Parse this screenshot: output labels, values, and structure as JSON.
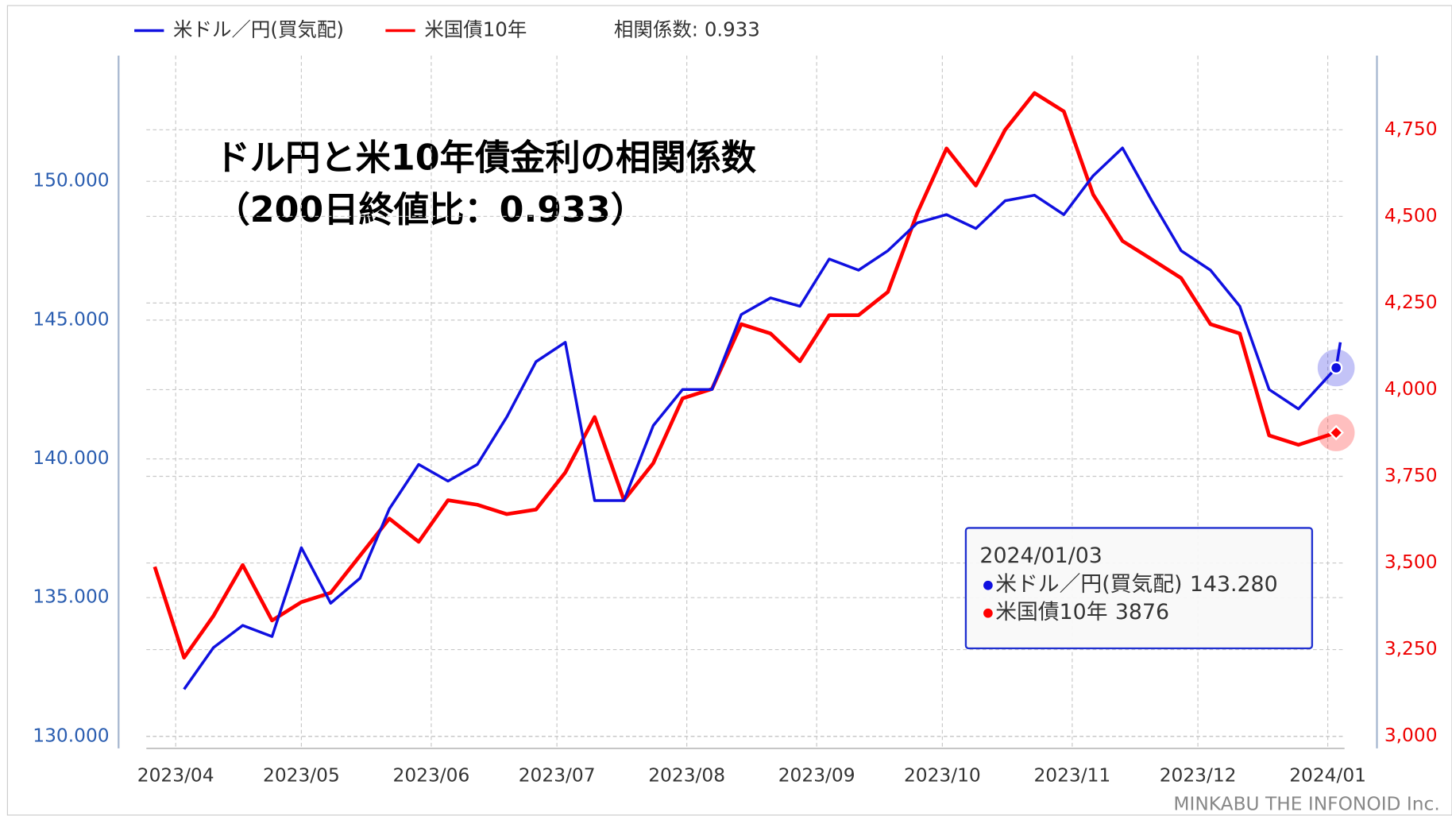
{
  "chart_data": {
    "type": "line",
    "title": "ドル円と米10年債金利の相関係数",
    "subtitle": "（200日終値比：0.933）",
    "legend_note": "相関係数: 0.933",
    "footer": "MINKABU THE INFONOID Inc.",
    "x": [
      "2023/03/27",
      "2023/04/03",
      "2023/04/10",
      "2023/04/17",
      "2023/04/24",
      "2023/05/01",
      "2023/05/08",
      "2023/05/15",
      "2023/05/22",
      "2023/05/29",
      "2023/06/05",
      "2023/06/12",
      "2023/06/19",
      "2023/06/26",
      "2023/07/03",
      "2023/07/10",
      "2023/07/17",
      "2023/07/24",
      "2023/07/31",
      "2023/08/07",
      "2023/08/14",
      "2023/08/21",
      "2023/08/28",
      "2023/09/04",
      "2023/09/11",
      "2023/09/18",
      "2023/09/25",
      "2023/10/02",
      "2023/10/09",
      "2023/10/16",
      "2023/10/23",
      "2023/10/30",
      "2023/11/06",
      "2023/11/13",
      "2023/11/20",
      "2023/11/27",
      "2023/12/04",
      "2023/12/11",
      "2023/12/18",
      "2023/12/25",
      "2024/01/03",
      "2024/01/04"
    ],
    "xlim": [
      "2023/03/25",
      "2024/01/05"
    ],
    "xticks": [
      {
        "value": "2023/04/01",
        "label": "2023/04"
      },
      {
        "value": "2023/05/01",
        "label": "2023/05"
      },
      {
        "value": "2023/06/01",
        "label": "2023/06"
      },
      {
        "value": "2023/07/01",
        "label": "2023/07"
      },
      {
        "value": "2023/08/01",
        "label": "2023/08"
      },
      {
        "value": "2023/09/01",
        "label": "2023/09"
      },
      {
        "value": "2023/10/01",
        "label": "2023/10"
      },
      {
        "value": "2023/11/01",
        "label": "2023/11"
      },
      {
        "value": "2023/12/01",
        "label": "2023/12"
      },
      {
        "value": "2024/01/01",
        "label": "2024/01"
      }
    ],
    "series": [
      {
        "name": "米ドル／円(買気配)",
        "color": "#1010e0",
        "values": [
          null,
          131.7,
          133.2,
          134.0,
          133.6,
          136.8,
          134.8,
          135.7,
          138.2,
          139.8,
          139.2,
          139.8,
          141.5,
          143.5,
          144.2,
          138.5,
          138.5,
          141.2,
          142.5,
          142.5,
          145.2,
          145.8,
          145.5,
          147.2,
          146.8,
          147.5,
          148.5,
          148.8,
          148.3,
          149.3,
          149.5,
          148.8,
          150.2,
          151.2,
          149.3,
          147.5,
          146.8,
          145.5,
          142.5,
          141.8,
          143.28,
          144.2
        ]
      },
      {
        "name": "米国債10年",
        "color": "#ff0000",
        "axis": "y2",
        "values": [
          3489,
          3227,
          3347,
          3494,
          3334,
          3387,
          3414,
          3521,
          3628,
          3561,
          3681,
          3668,
          3641,
          3654,
          3761,
          3921,
          3681,
          3788,
          3975,
          4002,
          4189,
          4162,
          4082,
          4215,
          4215,
          4282,
          4509,
          4696,
          4589,
          4750,
          4856,
          4803,
          4563,
          4429,
          4376,
          4322,
          4189,
          4162,
          3868,
          3841,
          3876,
          null
        ]
      }
    ],
    "ylim": [
      129.57,
      154.53
    ],
    "yticks": [
      {
        "value": 130,
        "label": "130.000"
      },
      {
        "value": 135,
        "label": "135.000"
      },
      {
        "value": 140,
        "label": "140.000"
      },
      {
        "value": 145,
        "label": "145.000"
      },
      {
        "value": 150,
        "label": "150.000"
      }
    ],
    "y2lim": [
      2965,
      4964
    ],
    "y2ticks": [
      {
        "value": 3000,
        "label": "3,000"
      },
      {
        "value": 3250,
        "label": "3,250"
      },
      {
        "value": 3500,
        "label": "3,500"
      },
      {
        "value": 3750,
        "label": "3,750"
      },
      {
        "value": 4000,
        "label": "4,000"
      },
      {
        "value": 4250,
        "label": "4,250"
      },
      {
        "value": 4500,
        "label": "4,500"
      },
      {
        "value": 4750,
        "label": "4,750"
      }
    ],
    "grid": true,
    "tooltip": {
      "date": "2024/01/03",
      "index": 40,
      "values": [
        143.28,
        3876
      ],
      "value_labels": [
        "143.280",
        "3876"
      ]
    }
  }
}
